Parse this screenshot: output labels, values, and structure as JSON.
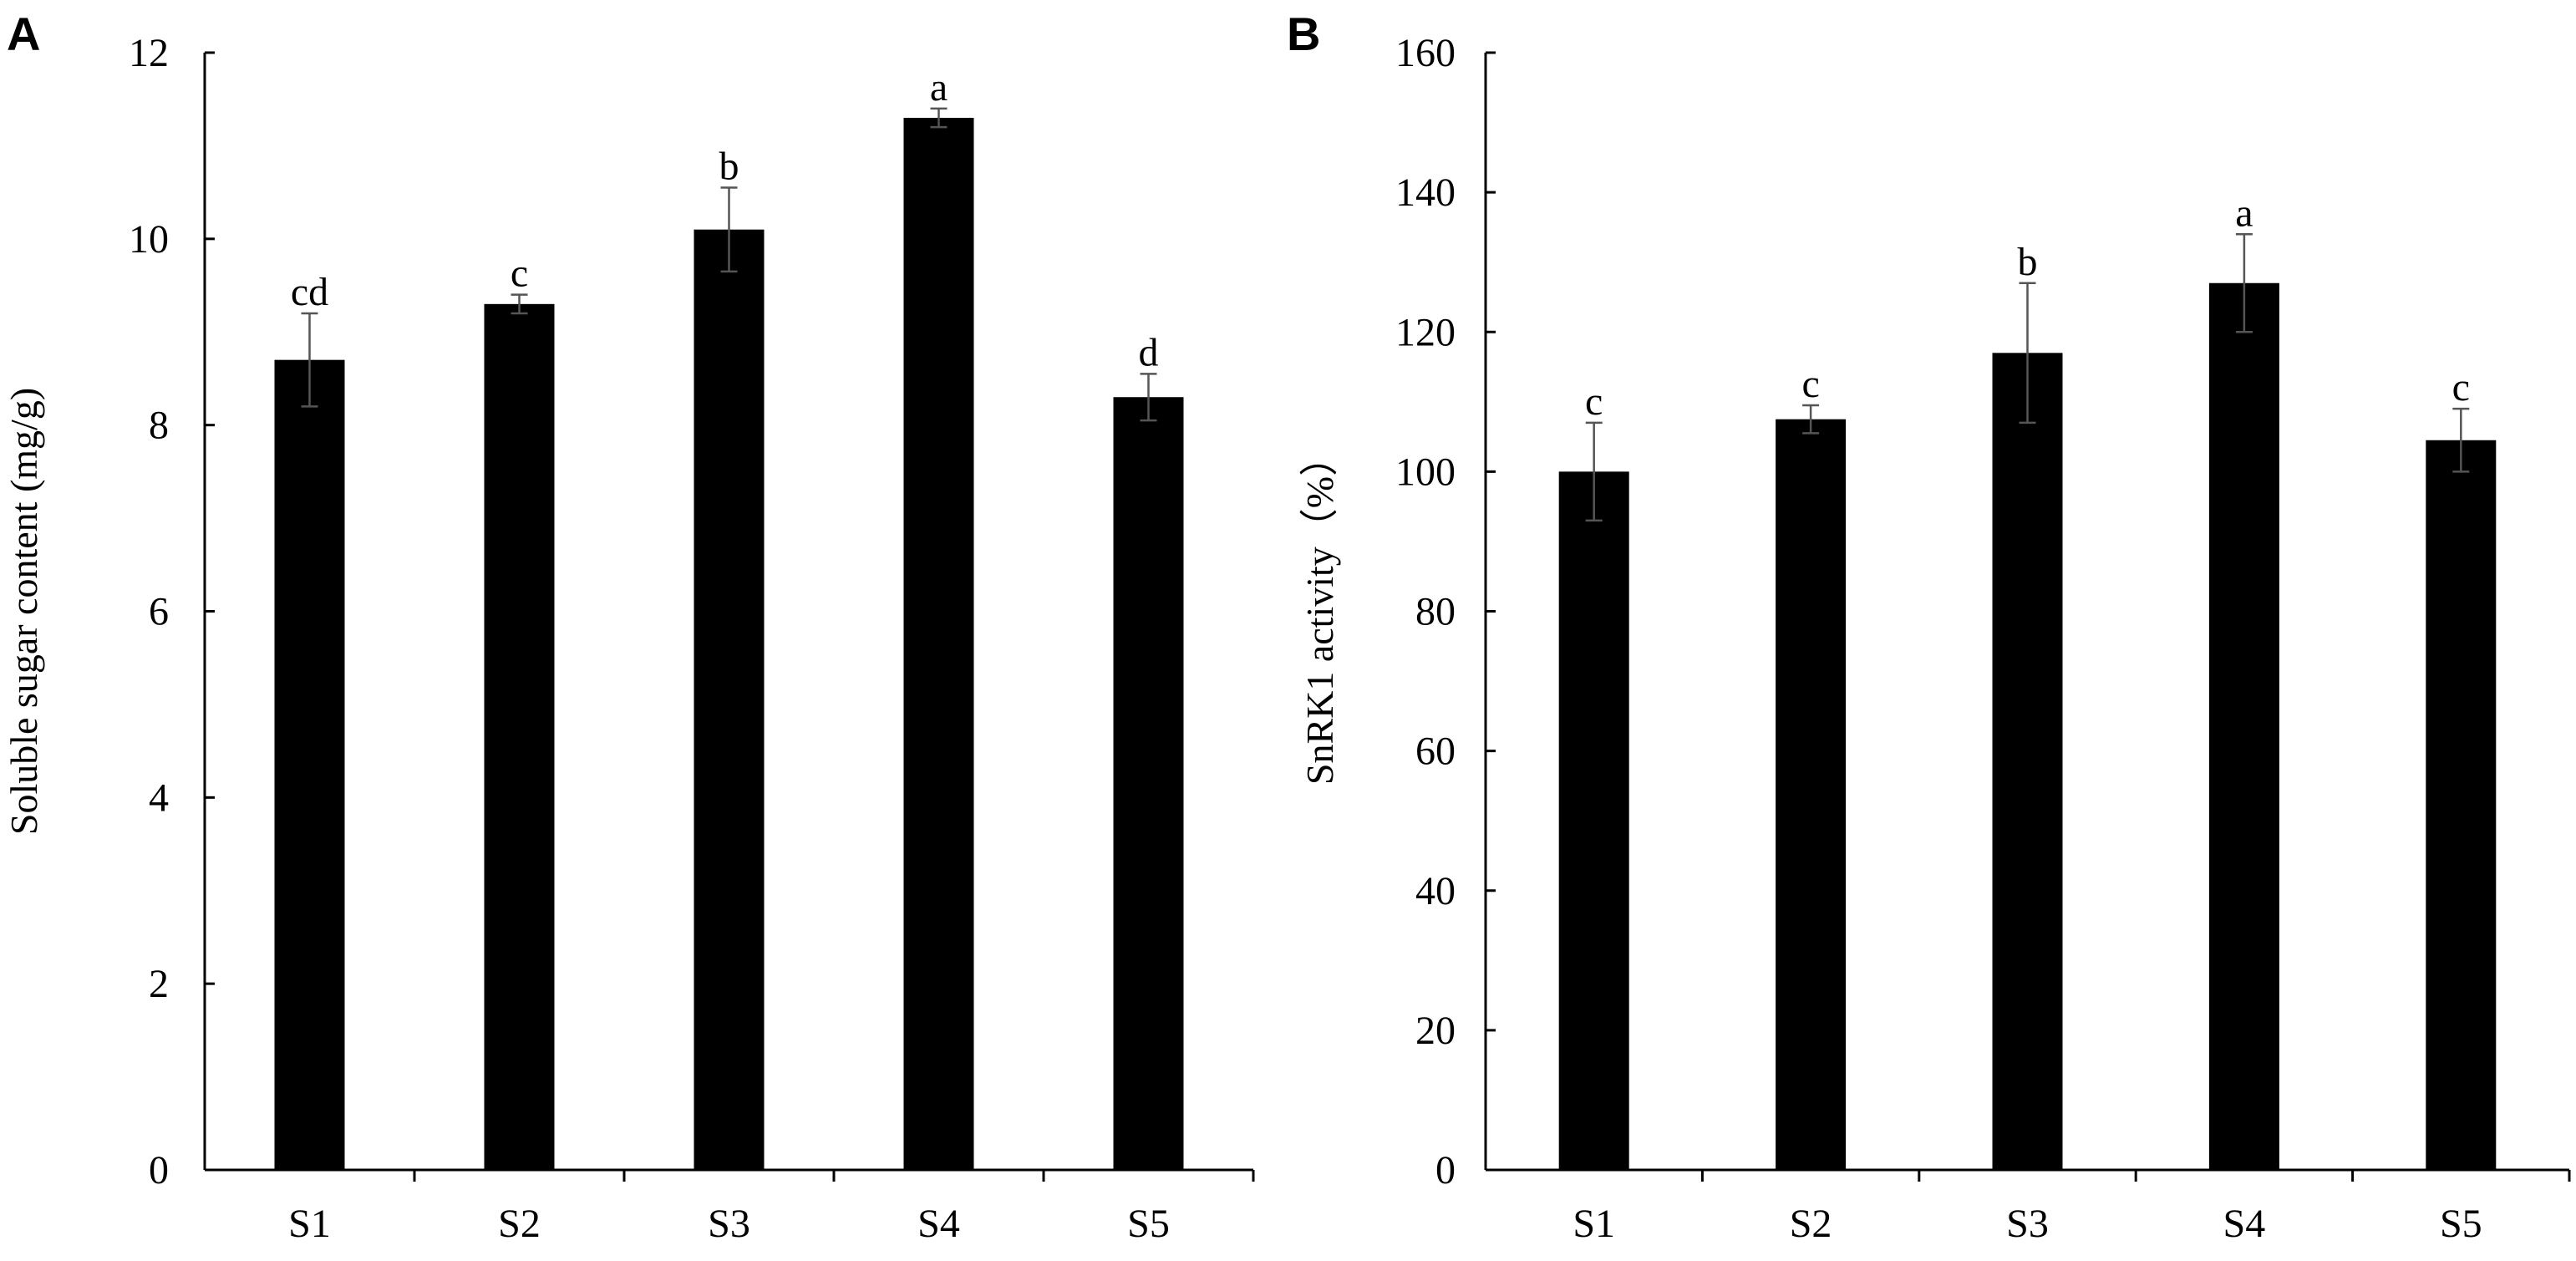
{
  "chart_data": [
    {
      "panel": "A",
      "type": "bar",
      "categories": [
        "S1",
        "S2",
        "S3",
        "S4",
        "S5"
      ],
      "values": [
        8.7,
        9.3,
        10.1,
        11.3,
        8.3
      ],
      "errors": [
        0.5,
        0.1,
        0.45,
        0.1,
        0.25
      ],
      "significance": [
        "cd",
        "c",
        "b",
        "a",
        "d"
      ],
      "xlabel": "",
      "ylabel": "Soluble sugar content (mg/g)",
      "ylim": [
        0,
        12
      ],
      "yticks": [
        0,
        2,
        4,
        6,
        8,
        10,
        12
      ],
      "bar_color": "#000000",
      "grid": false
    },
    {
      "panel": "B",
      "type": "bar",
      "categories": [
        "S1",
        "S2",
        "S3",
        "S4",
        "S5"
      ],
      "values": [
        100,
        107.5,
        117,
        127,
        104.5
      ],
      "errors": [
        7,
        2,
        10,
        7,
        4.5
      ],
      "significance": [
        "c",
        "c",
        "b",
        "a",
        "c"
      ],
      "xlabel": "",
      "ylabel": "SnRK1 activity（%）",
      "ylim": [
        0,
        160
      ],
      "yticks": [
        0,
        20,
        40,
        60,
        80,
        100,
        120,
        140,
        160
      ],
      "bar_color": "#000000",
      "grid": false
    }
  ]
}
